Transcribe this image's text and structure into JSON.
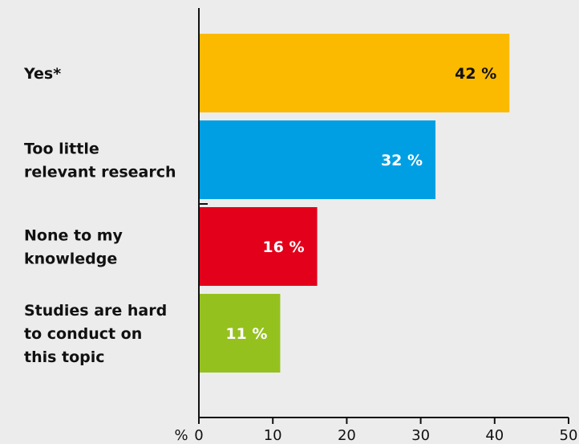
{
  "chart_data": {
    "type": "bar",
    "orientation": "horizontal",
    "categories": [
      [
        "Yes*"
      ],
      [
        "Too little",
        "relevant research"
      ],
      [
        "None to my",
        "knowledge"
      ],
      [
        "Studies are hard",
        "to conduct on",
        "this topic"
      ]
    ],
    "values": [
      42,
      32,
      16,
      11
    ],
    "value_labels": [
      "42 %",
      "32 %",
      "16 %",
      "11 %"
    ],
    "bar_colors": [
      "#fbba00",
      "#009fe3",
      "#e2001a",
      "#95c11f"
    ],
    "value_label_colors": [
      "#111111",
      "#ffffff",
      "#ffffff",
      "#ffffff"
    ],
    "xlim": [
      0,
      50
    ],
    "x_ticks": [
      0,
      10,
      20,
      30,
      40,
      50
    ],
    "x_unit_label": "%",
    "grid": false,
    "axis_color": "#111111",
    "background": "#ececec"
  }
}
